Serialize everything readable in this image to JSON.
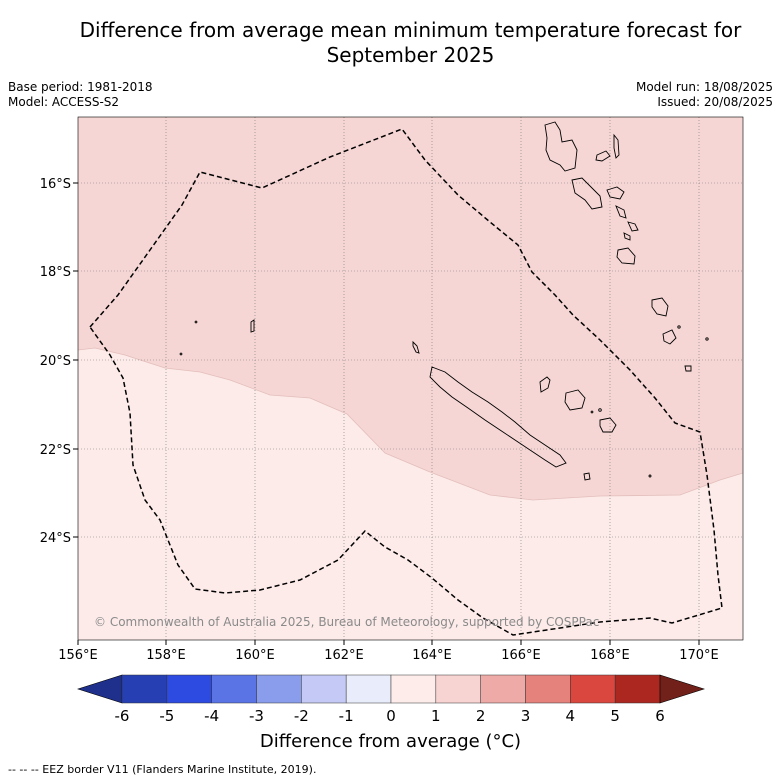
{
  "title_line1": "Difference from average mean minimum temperature forecast for",
  "title_line2": "September 2025",
  "base_period": "Base period: 1981-2018",
  "model": "Model: ACCESS-S2",
  "model_run": "Model run: 18/08/2025",
  "issued": "Issued: 20/08/2025",
  "copyright": "© Commonwealth of Australia 2025, Bureau of Meteorology, supported by COSPPac",
  "lat_labels": [
    "16°S",
    "18°S",
    "20°S",
    "22°S",
    "24°S"
  ],
  "lon_labels": [
    "156°E",
    "158°E",
    "160°E",
    "162°E",
    "164°E",
    "166°E",
    "168°E",
    "170°E"
  ],
  "colorbar": {
    "title": "Difference from average (°C)",
    "tick_labels": [
      "-6",
      "-5",
      "-4",
      "-3",
      "-2",
      "-1",
      "0",
      "1",
      "2",
      "3",
      "4",
      "5",
      "6"
    ],
    "colors": [
      "#1f2f8c",
      "#2640b4",
      "#2d4be0",
      "#5a74e6",
      "#8a9ded",
      "#c4caf5",
      "#e9ecfb",
      "#fdecea",
      "#f7d3d1",
      "#eeaaa6",
      "#e5827c",
      "#d9473f",
      "#ab271f",
      "#72201a"
    ]
  },
  "region_colors": {
    "zero_to_one": "#fcebe9",
    "one_to_two": "#f5d6d4"
  },
  "eez_note": "-- -- -- EEZ border V11 (Flanders Marine Institute, 2019)."
}
